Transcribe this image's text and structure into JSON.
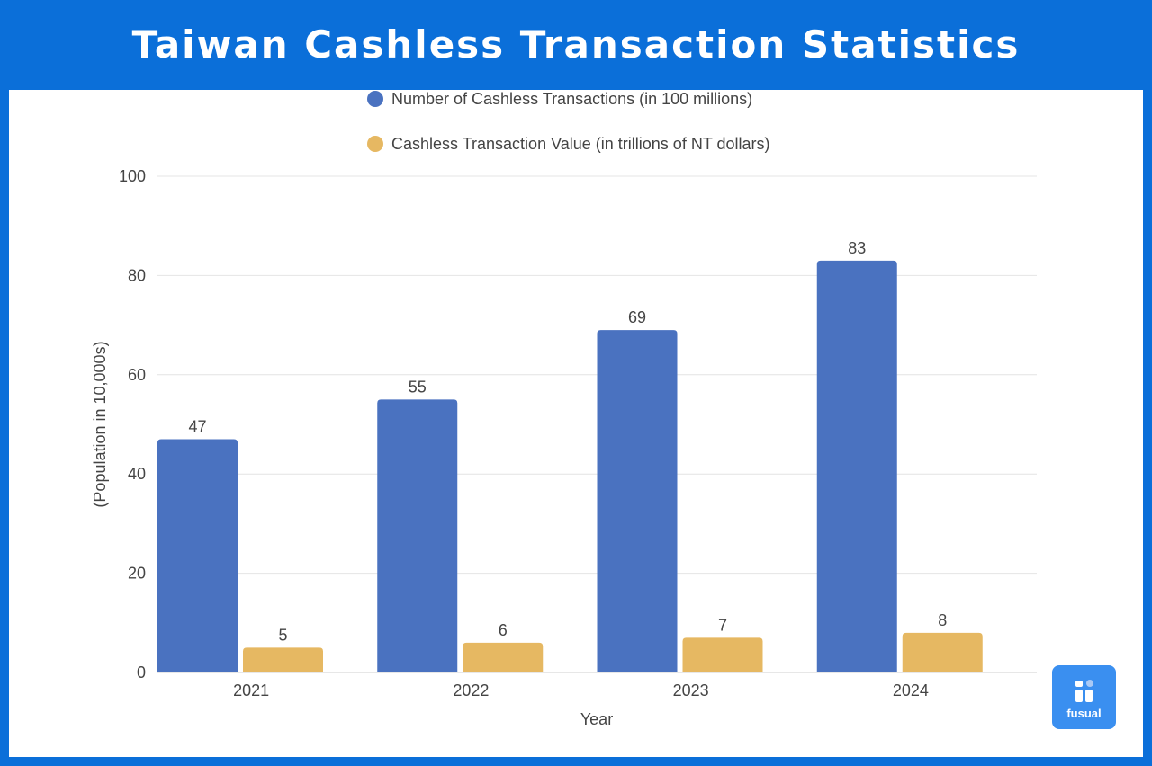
{
  "title": "Taiwan Cashless Transaction Statistics",
  "logo_text": "fusual",
  "chart_data": {
    "type": "bar",
    "categories": [
      "2021",
      "2022",
      "2023",
      "2024"
    ],
    "series": [
      {
        "name": "Number of Cashless Transactions (in 100 millions)",
        "values": [
          47,
          55,
          69,
          83
        ],
        "color": "#4a72c0"
      },
      {
        "name": "Cashless Transaction Value (in trillions of NT dollars)",
        "values": [
          5,
          6,
          7,
          8
        ],
        "color": "#e6b862"
      }
    ],
    "xlabel": "Year",
    "ylabel": "(Population in 10,000s)",
    "ylim": [
      0,
      100
    ],
    "yticks": [
      0,
      20,
      40,
      60,
      80,
      100
    ],
    "grid": true,
    "legend": "top-center",
    "data_labels": true
  }
}
